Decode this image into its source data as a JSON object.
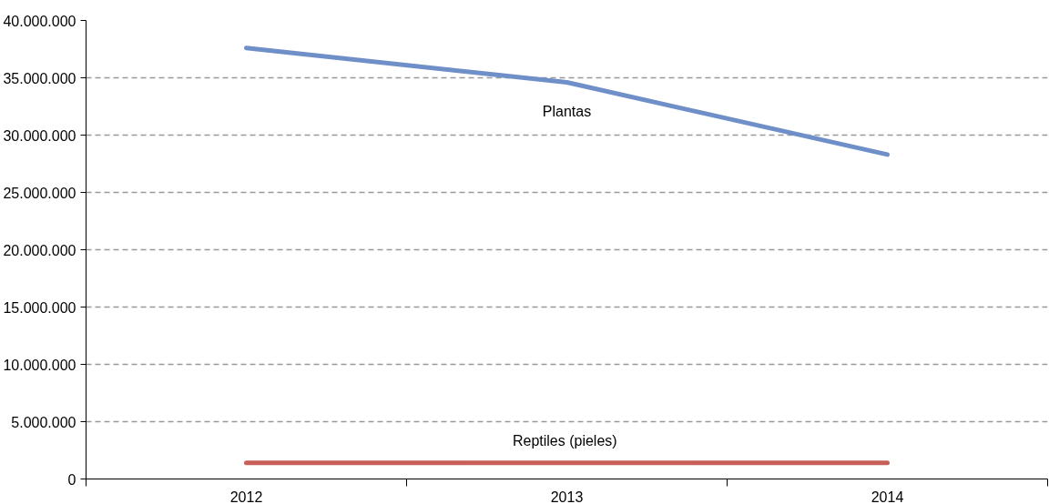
{
  "chart_data": {
    "type": "line",
    "categories": [
      "2012",
      "2013",
      "2014"
    ],
    "series": [
      {
        "name": "Plantas",
        "color": "#6f8fc8",
        "values": [
          37600000,
          34600000,
          28300000
        ]
      },
      {
        "name": "Reptiles  (pieles)",
        "color": "#c8605a",
        "values": [
          1400000,
          1400000,
          1400000
        ]
      }
    ],
    "ylim": [
      0,
      40000000
    ],
    "yticks": [
      {
        "value": 0,
        "label": "0"
      },
      {
        "value": 5000000,
        "label": "5.000.000"
      },
      {
        "value": 10000000,
        "label": "10.000.000"
      },
      {
        "value": 15000000,
        "label": "15.000.000"
      },
      {
        "value": 20000000,
        "label": "20.000.000"
      },
      {
        "value": 25000000,
        "label": "25.000.000"
      },
      {
        "value": 30000000,
        "label": "30.000.000"
      },
      {
        "value": 35000000,
        "label": "35.000.000"
      },
      {
        "value": 40000000,
        "label": "40.000.000"
      }
    ],
    "grid": "y",
    "line_style": "solid"
  }
}
